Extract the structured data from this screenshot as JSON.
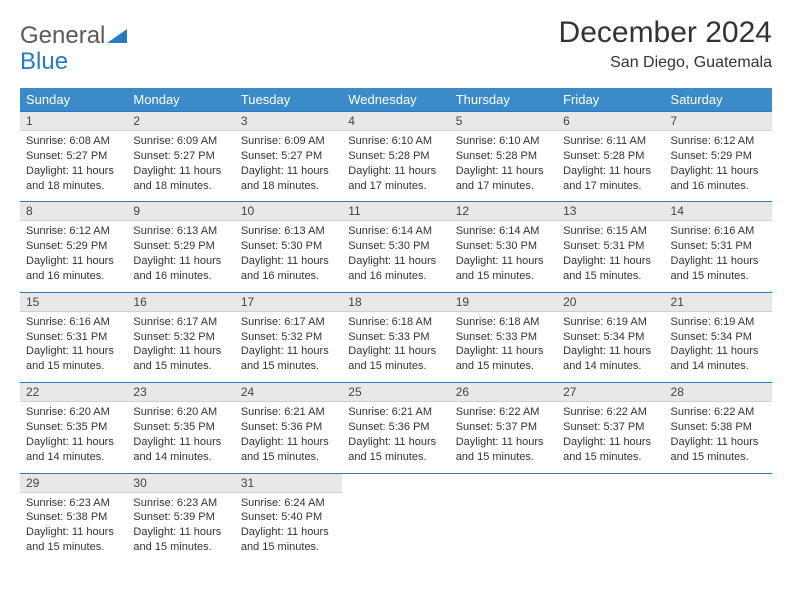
{
  "logo": {
    "word1": "General",
    "word2": "Blue"
  },
  "title": "December 2024",
  "location": "San Diego, Guatemala",
  "colors": {
    "header_bg": "#3b8bc9",
    "header_text": "#ffffff",
    "daynum_bg": "#e8e8e8",
    "border": "#2a7ac0",
    "logo_blue": "#2a7ac0",
    "text": "#333333"
  },
  "day_headers": [
    "Sunday",
    "Monday",
    "Tuesday",
    "Wednesday",
    "Thursday",
    "Friday",
    "Saturday"
  ],
  "days": [
    {
      "n": 1,
      "sr": "6:08 AM",
      "ss": "5:27 PM",
      "dl": "11 hours and 18 minutes."
    },
    {
      "n": 2,
      "sr": "6:09 AM",
      "ss": "5:27 PM",
      "dl": "11 hours and 18 minutes."
    },
    {
      "n": 3,
      "sr": "6:09 AM",
      "ss": "5:27 PM",
      "dl": "11 hours and 18 minutes."
    },
    {
      "n": 4,
      "sr": "6:10 AM",
      "ss": "5:28 PM",
      "dl": "11 hours and 17 minutes."
    },
    {
      "n": 5,
      "sr": "6:10 AM",
      "ss": "5:28 PM",
      "dl": "11 hours and 17 minutes."
    },
    {
      "n": 6,
      "sr": "6:11 AM",
      "ss": "5:28 PM",
      "dl": "11 hours and 17 minutes."
    },
    {
      "n": 7,
      "sr": "6:12 AM",
      "ss": "5:29 PM",
      "dl": "11 hours and 16 minutes."
    },
    {
      "n": 8,
      "sr": "6:12 AM",
      "ss": "5:29 PM",
      "dl": "11 hours and 16 minutes."
    },
    {
      "n": 9,
      "sr": "6:13 AM",
      "ss": "5:29 PM",
      "dl": "11 hours and 16 minutes."
    },
    {
      "n": 10,
      "sr": "6:13 AM",
      "ss": "5:30 PM",
      "dl": "11 hours and 16 minutes."
    },
    {
      "n": 11,
      "sr": "6:14 AM",
      "ss": "5:30 PM",
      "dl": "11 hours and 16 minutes."
    },
    {
      "n": 12,
      "sr": "6:14 AM",
      "ss": "5:30 PM",
      "dl": "11 hours and 15 minutes."
    },
    {
      "n": 13,
      "sr": "6:15 AM",
      "ss": "5:31 PM",
      "dl": "11 hours and 15 minutes."
    },
    {
      "n": 14,
      "sr": "6:16 AM",
      "ss": "5:31 PM",
      "dl": "11 hours and 15 minutes."
    },
    {
      "n": 15,
      "sr": "6:16 AM",
      "ss": "5:31 PM",
      "dl": "11 hours and 15 minutes."
    },
    {
      "n": 16,
      "sr": "6:17 AM",
      "ss": "5:32 PM",
      "dl": "11 hours and 15 minutes."
    },
    {
      "n": 17,
      "sr": "6:17 AM",
      "ss": "5:32 PM",
      "dl": "11 hours and 15 minutes."
    },
    {
      "n": 18,
      "sr": "6:18 AM",
      "ss": "5:33 PM",
      "dl": "11 hours and 15 minutes."
    },
    {
      "n": 19,
      "sr": "6:18 AM",
      "ss": "5:33 PM",
      "dl": "11 hours and 15 minutes."
    },
    {
      "n": 20,
      "sr": "6:19 AM",
      "ss": "5:34 PM",
      "dl": "11 hours and 14 minutes."
    },
    {
      "n": 21,
      "sr": "6:19 AM",
      "ss": "5:34 PM",
      "dl": "11 hours and 14 minutes."
    },
    {
      "n": 22,
      "sr": "6:20 AM",
      "ss": "5:35 PM",
      "dl": "11 hours and 14 minutes."
    },
    {
      "n": 23,
      "sr": "6:20 AM",
      "ss": "5:35 PM",
      "dl": "11 hours and 14 minutes."
    },
    {
      "n": 24,
      "sr": "6:21 AM",
      "ss": "5:36 PM",
      "dl": "11 hours and 15 minutes."
    },
    {
      "n": 25,
      "sr": "6:21 AM",
      "ss": "5:36 PM",
      "dl": "11 hours and 15 minutes."
    },
    {
      "n": 26,
      "sr": "6:22 AM",
      "ss": "5:37 PM",
      "dl": "11 hours and 15 minutes."
    },
    {
      "n": 27,
      "sr": "6:22 AM",
      "ss": "5:37 PM",
      "dl": "11 hours and 15 minutes."
    },
    {
      "n": 28,
      "sr": "6:22 AM",
      "ss": "5:38 PM",
      "dl": "11 hours and 15 minutes."
    },
    {
      "n": 29,
      "sr": "6:23 AM",
      "ss": "5:38 PM",
      "dl": "11 hours and 15 minutes."
    },
    {
      "n": 30,
      "sr": "6:23 AM",
      "ss": "5:39 PM",
      "dl": "11 hours and 15 minutes."
    },
    {
      "n": 31,
      "sr": "6:24 AM",
      "ss": "5:40 PM",
      "dl": "11 hours and 15 minutes."
    }
  ],
  "labels": {
    "sunrise": "Sunrise:",
    "sunset": "Sunset:",
    "daylight": "Daylight:"
  }
}
